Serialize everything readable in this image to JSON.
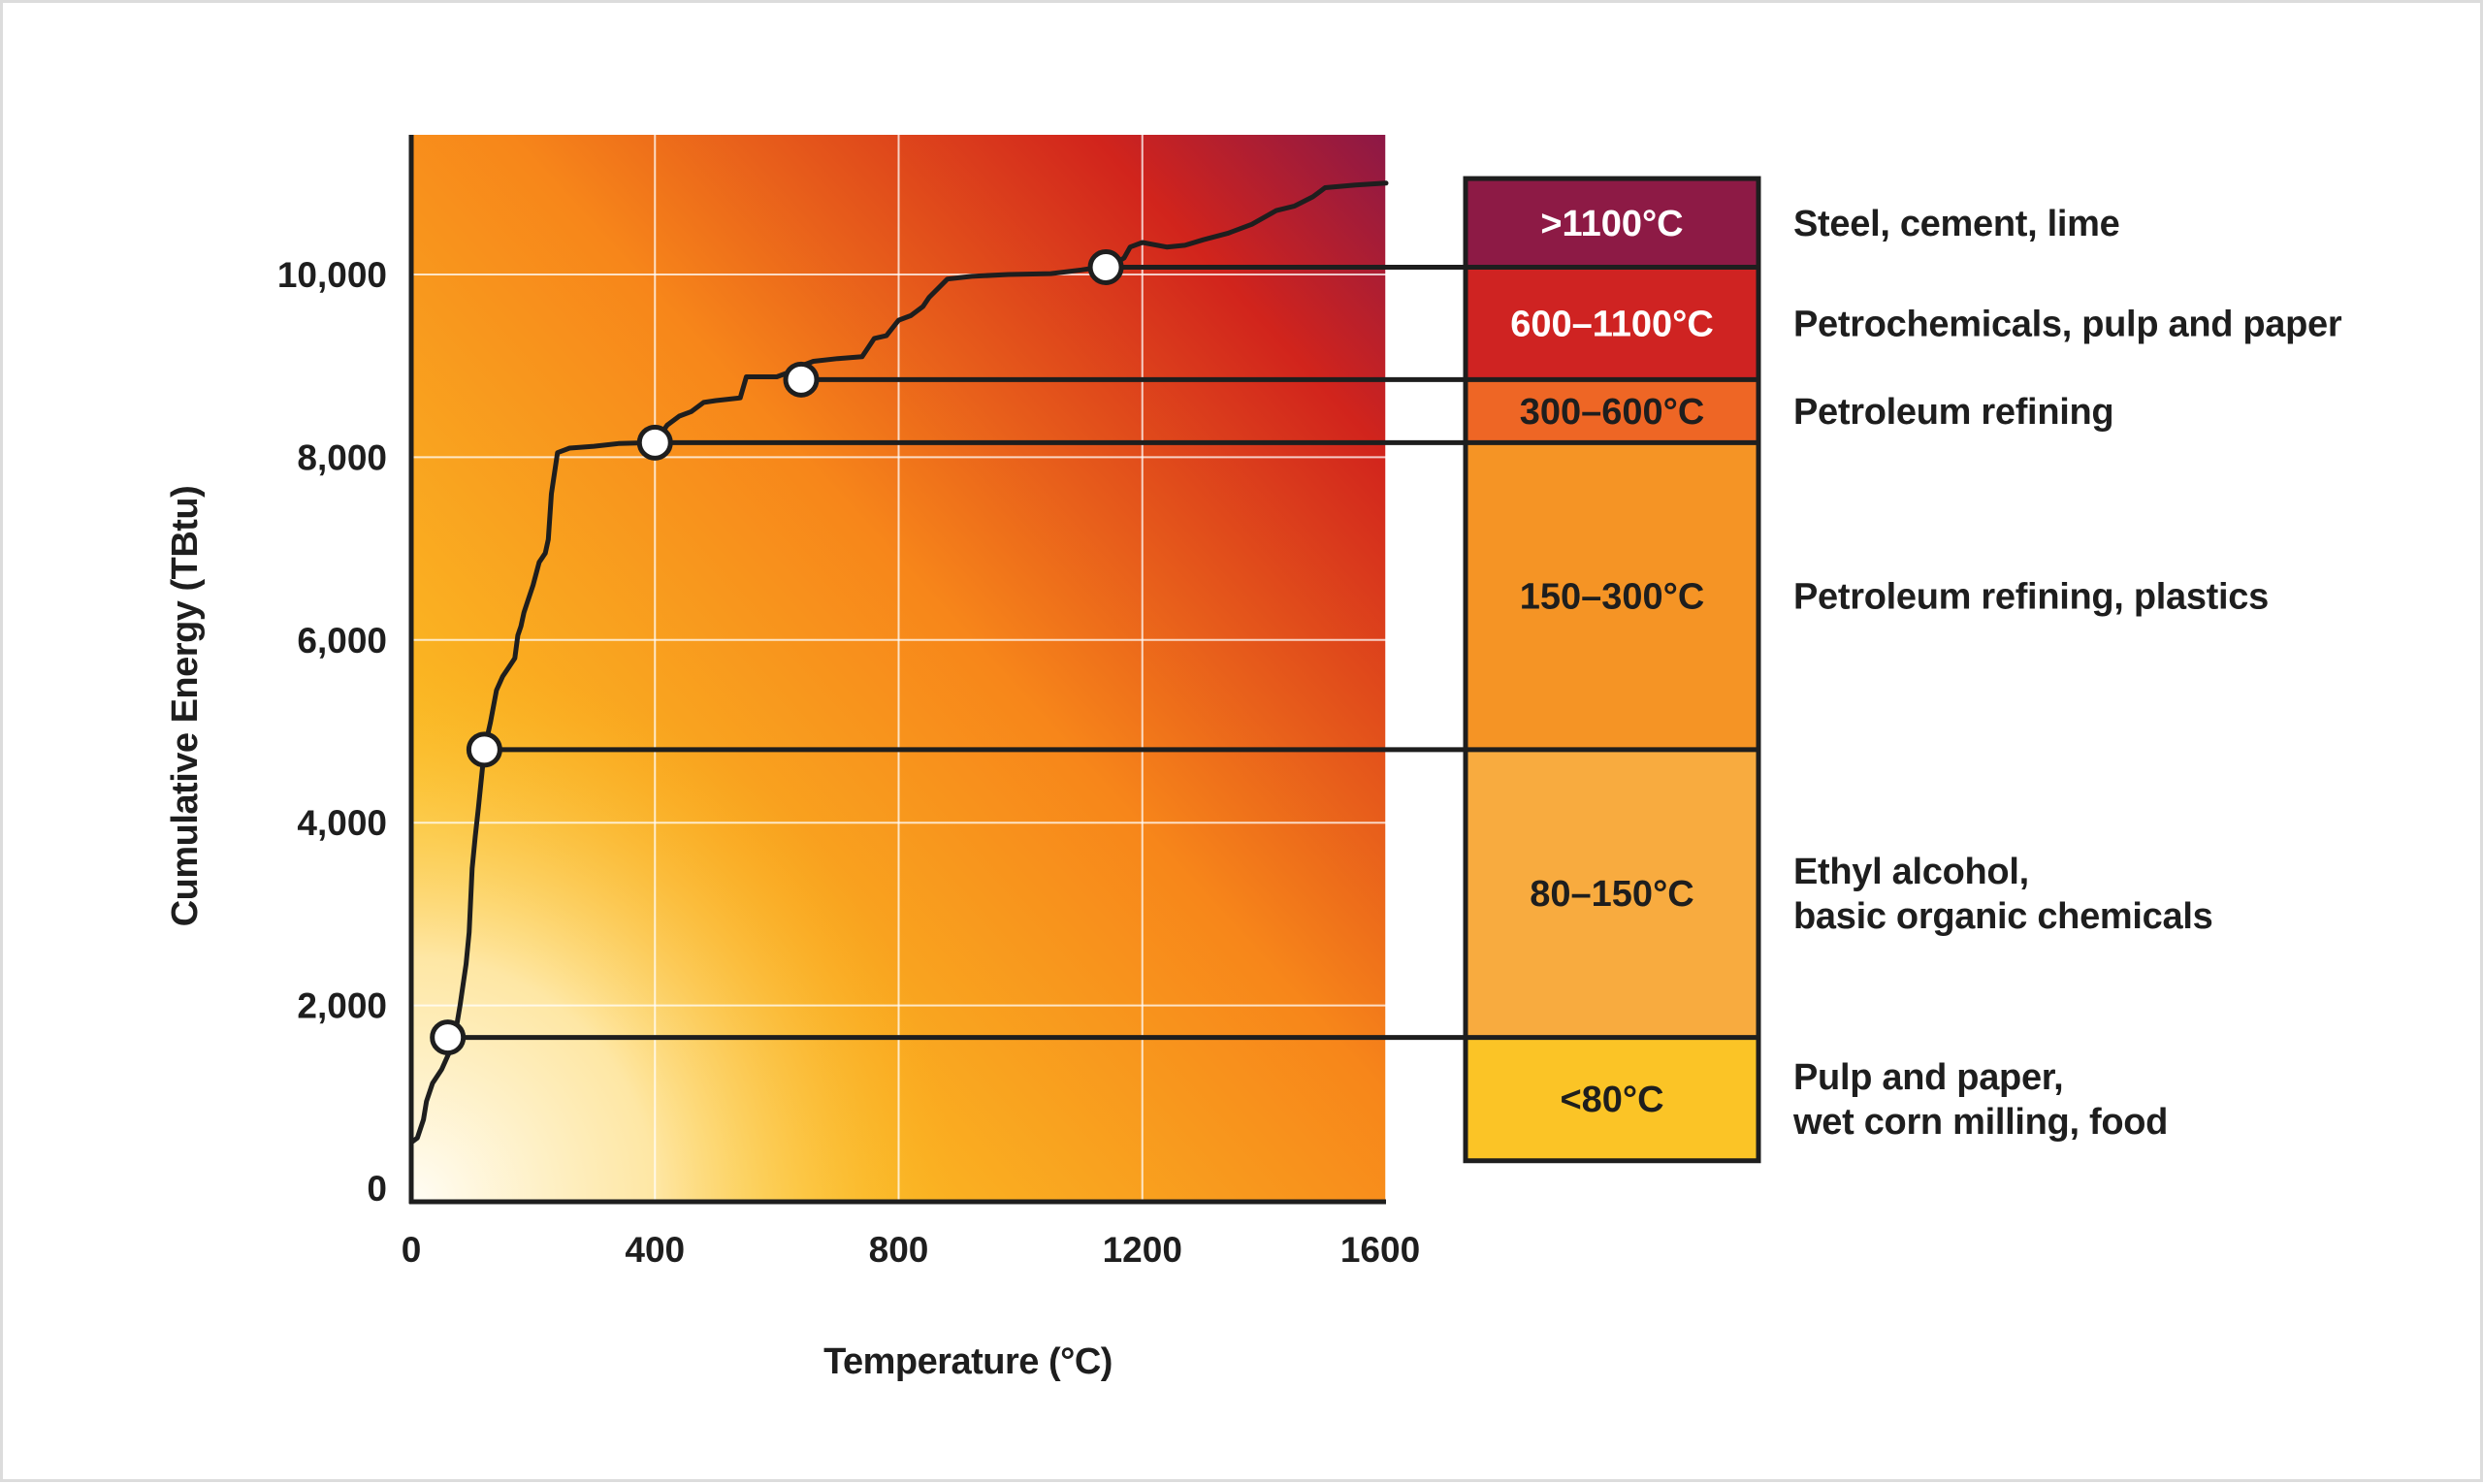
{
  "chart_data": {
    "type": "line",
    "title": "",
    "xlabel": "Temperature (°C)",
    "ylabel": "Cumulative Energy (TBtu)",
    "xlim": [
      0,
      1600
    ],
    "ylim": [
      0,
      11500
    ],
    "x_ticks": [
      0,
      400,
      800,
      1200,
      1600
    ],
    "x_tick_labels": [
      "0",
      "400",
      "800",
      "1200",
      "1600"
    ],
    "y_ticks": [
      0,
      2000,
      4000,
      6000,
      8000,
      10000
    ],
    "y_tick_labels": [
      "0",
      "2,000",
      "4,000",
      "6,000",
      "8,000",
      "10,000"
    ],
    "grid": true,
    "colors": {
      "curve": "#1e1e1e",
      "gradient_light": "#fffdf5",
      "gradient_yellow": "#fbbf24",
      "gradient_orange": "#f7861a",
      "gradient_red": "#d1241c",
      "gradient_maroon": "#8c1846"
    },
    "series": [
      {
        "name": "Cumulative energy",
        "x": [
          0,
          10,
          20,
          25,
          35,
          50,
          70,
          80,
          90,
          95,
          100,
          105,
          110,
          120,
          130,
          140,
          150,
          160,
          170,
          175,
          180,
          185,
          190,
          200,
          210,
          220,
          225,
          230,
          240,
          260,
          300,
          340,
          400,
          420,
          440,
          460,
          480,
          500,
          540,
          550,
          600,
          620,
          640,
          660,
          700,
          740,
          750,
          760,
          780,
          800,
          820,
          840,
          850,
          880,
          920,
          980,
          1050,
          1100,
          1130,
          1150,
          1170,
          1180,
          1200,
          1240,
          1270,
          1300,
          1340,
          1380,
          1420,
          1450,
          1480,
          1490,
          1500,
          1550,
          1600
        ],
        "y": [
          500,
          550,
          750,
          950,
          1150,
          1300,
          1600,
          2000,
          2450,
          2800,
          3500,
          3850,
          4150,
          4800,
          5100,
          5450,
          5600,
          5700,
          5800,
          6050,
          6150,
          6300,
          6400,
          6600,
          6850,
          6950,
          7100,
          7600,
          8050,
          8100,
          8120,
          8150,
          8160,
          8350,
          8450,
          8500,
          8600,
          8620,
          8650,
          8880,
          8880,
          8930,
          9000,
          9050,
          9080,
          9100,
          9200,
          9300,
          9330,
          9500,
          9550,
          9650,
          9750,
          9950,
          9980,
          10000,
          10010,
          10050,
          10080,
          10100,
          10180,
          10300,
          10350,
          10300,
          10320,
          10380,
          10450,
          10550,
          10700,
          10750,
          10850,
          10900,
          10950,
          10980,
          11000
        ]
      }
    ],
    "markers": [
      {
        "label": "<80°C",
        "x": 60,
        "y": 1650
      },
      {
        "label": "150–300°C",
        "x": 120,
        "y": 4800
      },
      {
        "label": "300–600°C",
        "x": 400,
        "y": 8160
      },
      {
        "label": "600–1100°C",
        "x": 640,
        "y": 8850
      },
      {
        "label": ">1100°C",
        "x": 1140,
        "y": 10080
      }
    ],
    "bands": [
      {
        "label": ">1100°C",
        "from": 10080,
        "to": 11050,
        "color": "#8d1a45",
        "text_color": "#ffffff",
        "sector": [
          "Steel, cement, lime"
        ]
      },
      {
        "label": "600–1100°C",
        "from": 8850,
        "to": 10080,
        "color": "#cf2322",
        "text_color": "#ffffff",
        "sector": [
          "Petrochemicals, pulp and paper"
        ]
      },
      {
        "label": "300–600°C",
        "from": 8160,
        "to": 8850,
        "color": "#ee6625",
        "text_color": "#1e1e1e",
        "sector": [
          "Petroleum refining"
        ]
      },
      {
        "label": "150–300°C",
        "from": 4800,
        "to": 8160,
        "color": "#f59425",
        "text_color": "#1e1e1e",
        "sector": [
          "Petroleum refining, plastics"
        ]
      },
      {
        "label": "80–150°C",
        "from": 1650,
        "to": 4800,
        "color": "#f8ab3f",
        "text_color": "#1e1e1e",
        "sector": [
          "Ethyl alcohol,",
          "basic organic chemicals"
        ]
      },
      {
        "label": "<80°C",
        "from": 300,
        "to": 1650,
        "color": "#fbc426",
        "text_color": "#1e1e1e",
        "sector": [
          "Pulp and paper,",
          "wet corn milling, food"
        ]
      }
    ]
  }
}
